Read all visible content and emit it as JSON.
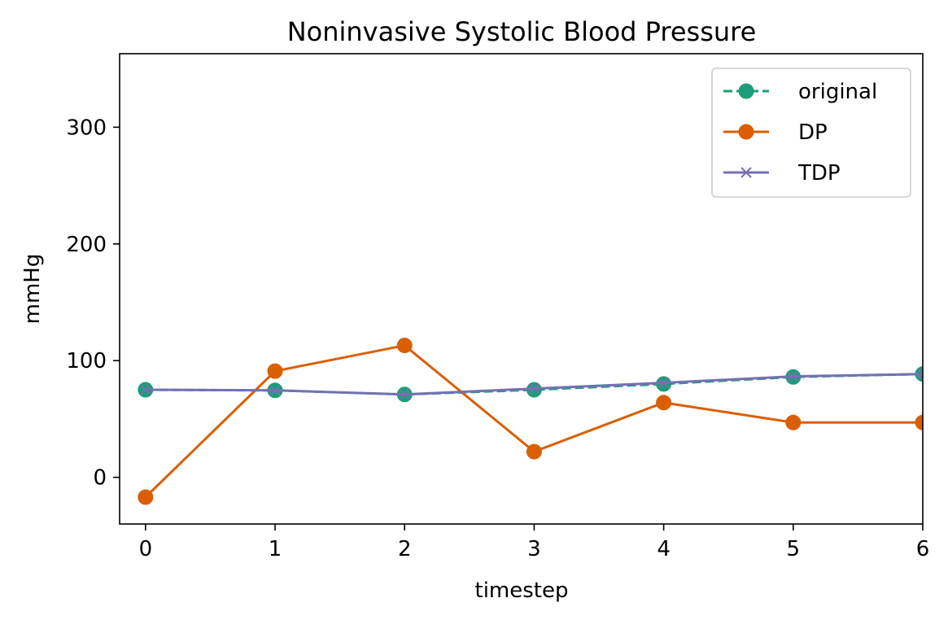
{
  "chart_data": {
    "type": "line",
    "title": "Noninvasive Systolic Blood Pressure",
    "xlabel": "timestep",
    "ylabel": "mmHg",
    "x": [
      0,
      1,
      2,
      3,
      4,
      5,
      6
    ],
    "xlim": [
      -0.2,
      6
    ],
    "ylim": [
      -40,
      363
    ],
    "xticks": [
      0,
      1,
      2,
      3,
      4,
      5,
      6
    ],
    "xtick_labels": [
      "0",
      "1",
      "2",
      "3",
      "4",
      "5",
      "6"
    ],
    "yticks": [
      0,
      100,
      200,
      300
    ],
    "ytick_labels": [
      "0",
      "100",
      "200",
      "300"
    ],
    "grid": false,
    "legend_position": "top-right",
    "series": [
      {
        "name": "original",
        "values": [
          75,
          74.5,
          71,
          75,
          80,
          86,
          88.5
        ],
        "color": "#1b9e77",
        "line_style": "dashed",
        "marker": "circle"
      },
      {
        "name": "DP",
        "values": [
          -17,
          91,
          113,
          22,
          64,
          47,
          47
        ],
        "color": "#d95f02",
        "line_style": "solid",
        "marker": "circle"
      },
      {
        "name": "TDP",
        "values": [
          75,
          74.5,
          71,
          76,
          81,
          86.5,
          88.5
        ],
        "color": "#7570b3",
        "line_style": "solid",
        "marker": "x"
      }
    ]
  }
}
